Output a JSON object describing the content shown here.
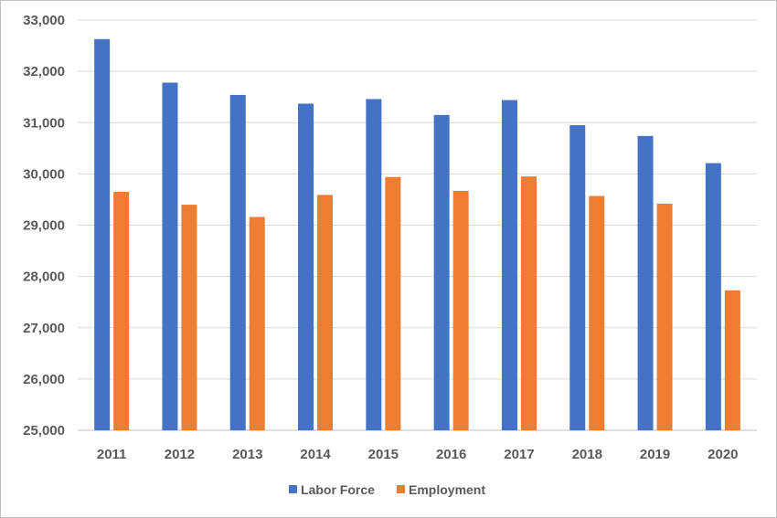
{
  "chart_data": {
    "type": "bar",
    "categories": [
      "2011",
      "2012",
      "2013",
      "2014",
      "2015",
      "2016",
      "2017",
      "2018",
      "2019",
      "2020"
    ],
    "series": [
      {
        "name": "Labor Force",
        "values": [
          32630,
          31780,
          31540,
          31370,
          31460,
          31150,
          31440,
          30950,
          30740,
          30210
        ]
      },
      {
        "name": "Employment",
        "values": [
          29650,
          29400,
          29160,
          29590,
          29940,
          29670,
          29950,
          29570,
          29420,
          27730
        ]
      }
    ],
    "colors": {
      "Labor Force": "#4472c4",
      "Employment": "#ed7d31"
    },
    "ylim": [
      25000,
      33000
    ],
    "yticks": [
      "25,000",
      "26,000",
      "27,000",
      "28,000",
      "29,000",
      "30,000",
      "31,000",
      "32,000",
      "33,000"
    ],
    "grid": true,
    "legend_position": "bottom",
    "title": "",
    "xlabel": "",
    "ylabel": ""
  }
}
